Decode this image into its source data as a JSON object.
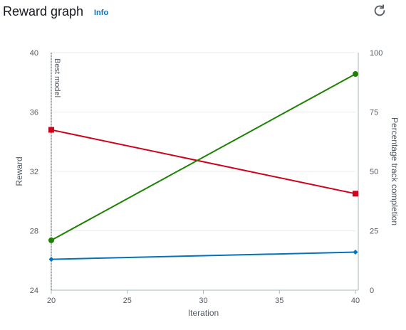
{
  "header": {
    "title": "Reward graph",
    "info_label": "Info",
    "refresh_icon": "refresh-icon"
  },
  "chart_data": {
    "type": "line",
    "x": [
      20,
      40
    ],
    "xlabel": "Iteration",
    "xlim": [
      20,
      40
    ],
    "x_ticks": [
      "20",
      "25",
      "30",
      "35",
      "40"
    ],
    "ylabel": "Reward",
    "ylim": [
      24,
      40
    ],
    "y_ticks": [
      "24",
      "28",
      "32",
      "36",
      "40"
    ],
    "y2label": "Percentage track completion",
    "y2lim": [
      0,
      100
    ],
    "y2_ticks": [
      "0",
      "25",
      "50",
      "75",
      "100"
    ],
    "grid": true,
    "annotations": [
      {
        "x": 20,
        "text": "Best model"
      }
    ],
    "series": [
      {
        "axis": "left",
        "marker": "square",
        "color": "#d0021b",
        "values": [
          34.8,
          30.5
        ]
      },
      {
        "axis": "right",
        "marker": "circle",
        "color": "#1d8102",
        "values": [
          21,
          91
        ]
      },
      {
        "axis": "right",
        "marker": "diamond",
        "color": "#0073bb",
        "values": [
          13,
          16
        ]
      }
    ]
  }
}
